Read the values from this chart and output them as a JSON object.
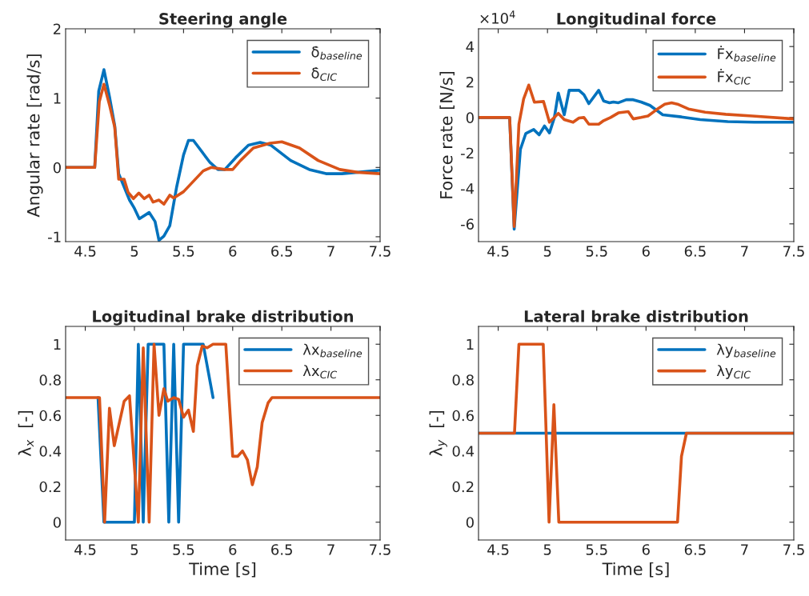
{
  "chart_data": [
    {
      "type": "line",
      "title": "Steering angle",
      "ylabel": "Angular rate [rad/s]",
      "xlim": [
        4.3,
        7.5
      ],
      "xticks": [
        4.5,
        5,
        5.5,
        6,
        6.5,
        7,
        7.5
      ],
      "ylim": [
        -1.07,
        2
      ],
      "yticks": [
        -1,
        0,
        1,
        2
      ],
      "legend": "top right",
      "grid": false,
      "line_style": "solid",
      "marker": "none",
      "series": [
        {
          "name": "δ̇$_{baseline}$",
          "color": "#0072bd",
          "x": [
            4.3,
            4.596,
            4.637,
            4.69,
            4.745,
            4.8,
            4.84,
            4.895,
            4.95,
            5.0,
            5.05,
            5.15,
            5.21,
            5.25,
            5.3,
            5.36,
            5.43,
            5.5,
            5.55,
            5.6,
            5.77,
            5.85,
            5.92,
            6.03,
            6.16,
            6.28,
            6.39,
            6.59,
            6.78,
            6.95,
            7.11,
            7.27,
            7.5
          ],
          "values": [
            0,
            0,
            1.1,
            1.41,
            1.03,
            0.6,
            -0.09,
            -0.28,
            -0.47,
            -0.59,
            -0.74,
            -0.65,
            -0.78,
            -1.05,
            -0.99,
            -0.84,
            -0.28,
            0.18,
            0.39,
            0.39,
            0.07,
            -0.03,
            -0.03,
            0.14,
            0.32,
            0.36,
            0.32,
            0.1,
            -0.03,
            -0.09,
            -0.09,
            -0.07,
            -0.04
          ]
        },
        {
          "name": "δ̇$_{CIC}$",
          "color": "#d95319",
          "x": [
            4.3,
            4.596,
            4.643,
            4.69,
            4.745,
            4.8,
            4.84,
            4.895,
            4.936,
            4.99,
            5.045,
            5.1,
            5.15,
            5.19,
            5.25,
            5.3,
            5.36,
            5.4,
            5.5,
            5.6,
            5.7,
            5.78,
            5.92,
            6.0,
            6.08,
            6.21,
            6.38,
            6.5,
            6.68,
            6.87,
            7.09,
            7.27,
            7.5
          ],
          "values": [
            0,
            0,
            0.95,
            1.2,
            0.91,
            0.58,
            -0.17,
            -0.17,
            -0.36,
            -0.45,
            -0.37,
            -0.45,
            -0.4,
            -0.5,
            -0.47,
            -0.53,
            -0.4,
            -0.44,
            -0.35,
            -0.2,
            -0.05,
            0,
            -0.03,
            -0.03,
            0.1,
            0.28,
            0.35,
            0.37,
            0.28,
            0.1,
            -0.03,
            -0.07,
            -0.09
          ]
        }
      ]
    },
    {
      "type": "line",
      "title": "Longitudinal force",
      "ylabel": "Force rate [N/s]",
      "annotations": [
        "×10$^{4}$"
      ],
      "xlim": [
        4.3,
        7.5
      ],
      "xticks": [
        4.5,
        5,
        5.5,
        6,
        6.5,
        7,
        7.5
      ],
      "ylim": [
        -7,
        5
      ],
      "yticks": [
        -6,
        -4,
        -2,
        0,
        2,
        4
      ],
      "legend": "top right",
      "grid": false,
      "line_style": "solid",
      "marker": "none",
      "series": [
        {
          "name": "Ḟx$_{baseline}$",
          "color": "#0072bd",
          "x": [
            4.3,
            4.616,
            4.662,
            4.725,
            4.78,
            4.86,
            4.915,
            4.97,
            5.02,
            5.07,
            5.11,
            5.17,
            5.22,
            5.32,
            5.37,
            5.42,
            5.52,
            5.57,
            5.63,
            5.67,
            5.72,
            5.8,
            5.87,
            5.95,
            6.04,
            6.17,
            6.36,
            6.55,
            6.83,
            7.1,
            7.5
          ],
          "values": [
            0,
            0,
            -6.3,
            -1.8,
            -0.9,
            -0.68,
            -0.98,
            -0.48,
            -0.87,
            0,
            1.38,
            0.15,
            1.53,
            1.53,
            1.28,
            0.78,
            1.53,
            0.93,
            0.83,
            0.87,
            0.83,
            1.0,
            1.0,
            0.87,
            0.68,
            0.15,
            0.03,
            -0.12,
            -0.23,
            -0.27,
            -0.27
          ]
        },
        {
          "name": "Ḟx$_{CIC}$",
          "color": "#d95319",
          "x": [
            4.3,
            4.616,
            4.662,
            4.71,
            4.758,
            4.81,
            4.867,
            4.96,
            5.02,
            5.11,
            5.17,
            5.26,
            5.32,
            5.37,
            5.42,
            5.52,
            5.57,
            5.64,
            5.72,
            5.82,
            5.87,
            5.95,
            6.02,
            6.11,
            6.19,
            6.26,
            6.32,
            6.43,
            6.6,
            6.81,
            7.08,
            7.5
          ],
          "values": [
            0,
            0,
            -6.15,
            -0.38,
            1.05,
            1.83,
            0.86,
            0.9,
            -0.27,
            0.23,
            -0.12,
            -0.27,
            -0.03,
            0,
            -0.38,
            -0.38,
            -0.18,
            0,
            0.26,
            0.33,
            -0.08,
            0,
            0.08,
            0.45,
            0.75,
            0.83,
            0.75,
            0.48,
            0.3,
            0.18,
            0.08,
            -0.08
          ]
        }
      ]
    },
    {
      "type": "line",
      "title": "Logitudinal brake distribution",
      "xlabel": "Time [s]",
      "ylabel": "λ$_{x}$  [-]",
      "xlim": [
        4.3,
        7.5
      ],
      "xticks": [
        4.5,
        5,
        5.5,
        6,
        6.5,
        7,
        7.5
      ],
      "ylim": [
        -0.1,
        1.1
      ],
      "yticks": [
        0,
        0.2,
        0.4,
        0.6,
        0.8,
        1
      ],
      "legend": "top right",
      "grid": false,
      "line_style": "solid",
      "marker": "none",
      "series": [
        {
          "name": "λx$_{baseline}$",
          "color": "#0072bd",
          "x": [
            4.63,
            4.69,
            5.0,
            5.04,
            5.09,
            5.14,
            5.3,
            5.35,
            5.4,
            5.45,
            5.5,
            5.7,
            5.8
          ],
          "values": [
            0.7,
            0,
            0,
            1,
            0,
            1,
            1,
            0,
            1,
            0,
            1,
            1,
            0.7
          ]
        },
        {
          "name": "λx$_{CIC}$",
          "color": "#d95319",
          "x": [
            4.3,
            4.645,
            4.697,
            4.746,
            4.795,
            4.896,
            4.95,
            5.04,
            5.09,
            5.15,
            5.2,
            5.25,
            5.3,
            5.34,
            5.4,
            5.45,
            5.5,
            5.55,
            5.6,
            5.64,
            5.69,
            5.74,
            5.8,
            5.93,
            6.0,
            6.05,
            6.1,
            6.15,
            6.2,
            6.25,
            6.3,
            6.36,
            6.4,
            7.5
          ],
          "values": [
            0.7,
            0.7,
            0,
            0.64,
            0.43,
            0.68,
            0.71,
            0,
            0.98,
            0,
            1.0,
            0.6,
            0.75,
            0.68,
            0.7,
            0.69,
            0.59,
            0.63,
            0.51,
            0.88,
            0.99,
            0.98,
            1,
            1,
            0.37,
            0.37,
            0.4,
            0.35,
            0.21,
            0.31,
            0.56,
            0.67,
            0.7,
            0.7
          ]
        }
      ]
    },
    {
      "type": "line",
      "title": "Lateral brake distribution",
      "xlabel": "Time [s]",
      "ylabel": "λ$_{y}$  [-]",
      "xlim": [
        4.3,
        7.5
      ],
      "xticks": [
        4.5,
        5,
        5.5,
        6,
        6.5,
        7,
        7.5
      ],
      "ylim": [
        -0.1,
        1.1
      ],
      "yticks": [
        0,
        0.2,
        0.4,
        0.6,
        0.8,
        1
      ],
      "legend": "top right",
      "grid": false,
      "line_style": "solid",
      "marker": "none",
      "series": [
        {
          "name": "λy$_{baseline}$",
          "color": "#0072bd",
          "x": [
            4.3,
            7.5
          ],
          "values": [
            0.5,
            0.5
          ]
        },
        {
          "name": "λy$_{CIC}$",
          "color": "#d95319",
          "x": [
            4.3,
            4.665,
            4.71,
            4.957,
            5.016,
            5.065,
            5.115,
            6.32,
            6.36,
            6.41,
            7.5
          ],
          "values": [
            0.5,
            0.5,
            1,
            1,
            0,
            0.66,
            0,
            0,
            0.37,
            0.5,
            0.5
          ]
        }
      ]
    }
  ]
}
